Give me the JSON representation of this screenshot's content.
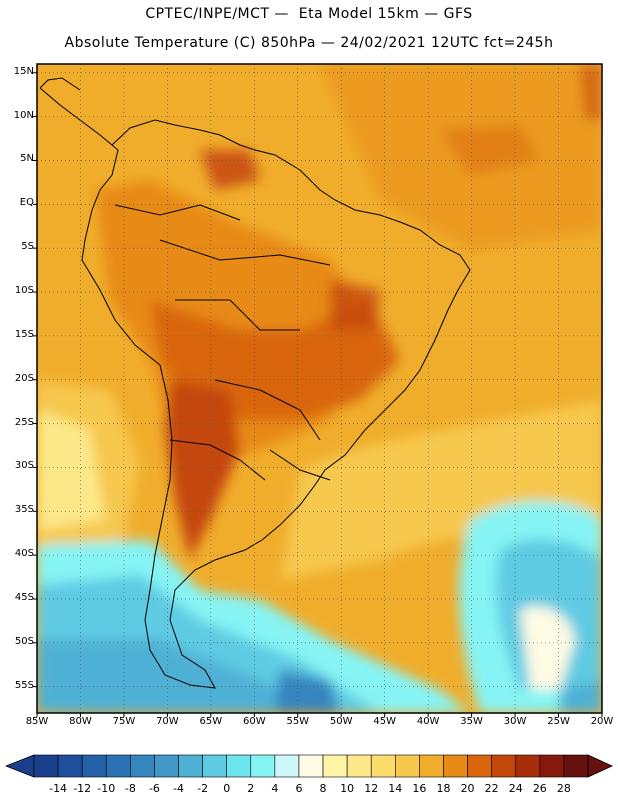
{
  "header": {
    "line1": "CPTEC/INPE/MCT —  Eta Model 15km — GFS",
    "line2": "Absolute Temperature (C) 850hPa — 24/02/2021 12UTC fct=245h"
  },
  "map": {
    "lat_ticks": [
      "15N",
      "10N",
      "5N",
      "EQ",
      "5S",
      "10S",
      "15S",
      "20S",
      "25S",
      "30S",
      "35S",
      "40S",
      "45S",
      "50S",
      "55S"
    ],
    "lon_ticks": [
      "85W",
      "80W",
      "75W",
      "70W",
      "65W",
      "60W",
      "55W",
      "50W",
      "45W",
      "40W",
      "35W",
      "30W",
      "25W",
      "20W"
    ],
    "extent": {
      "lon": [
        -85,
        -20
      ],
      "lat": [
        -58,
        16
      ]
    }
  },
  "colorbar": {
    "labels": [
      "-14",
      "-12",
      "-10",
      "-8",
      "-6",
      "-4",
      "-2",
      "0",
      "2",
      "4",
      "6",
      "8",
      "10",
      "12",
      "14",
      "16",
      "18",
      "20",
      "22",
      "24",
      "26",
      "28"
    ],
    "colors": [
      "#1a3f8c",
      "#1d4f9c",
      "#2360a8",
      "#2b72b4",
      "#3585bf",
      "#4198c8",
      "#4fb0d6",
      "#5ecbe3",
      "#6de5ef",
      "#86f4f4",
      "#cdf7f9",
      "#fffbe4",
      "#fff5a6",
      "#fde98a",
      "#fbdc6c",
      "#f6c84e",
      "#f0ad2c",
      "#e88a16",
      "#d9660b",
      "#c4470a",
      "#a82d0b",
      "#85190d",
      "#66100f"
    ]
  }
}
